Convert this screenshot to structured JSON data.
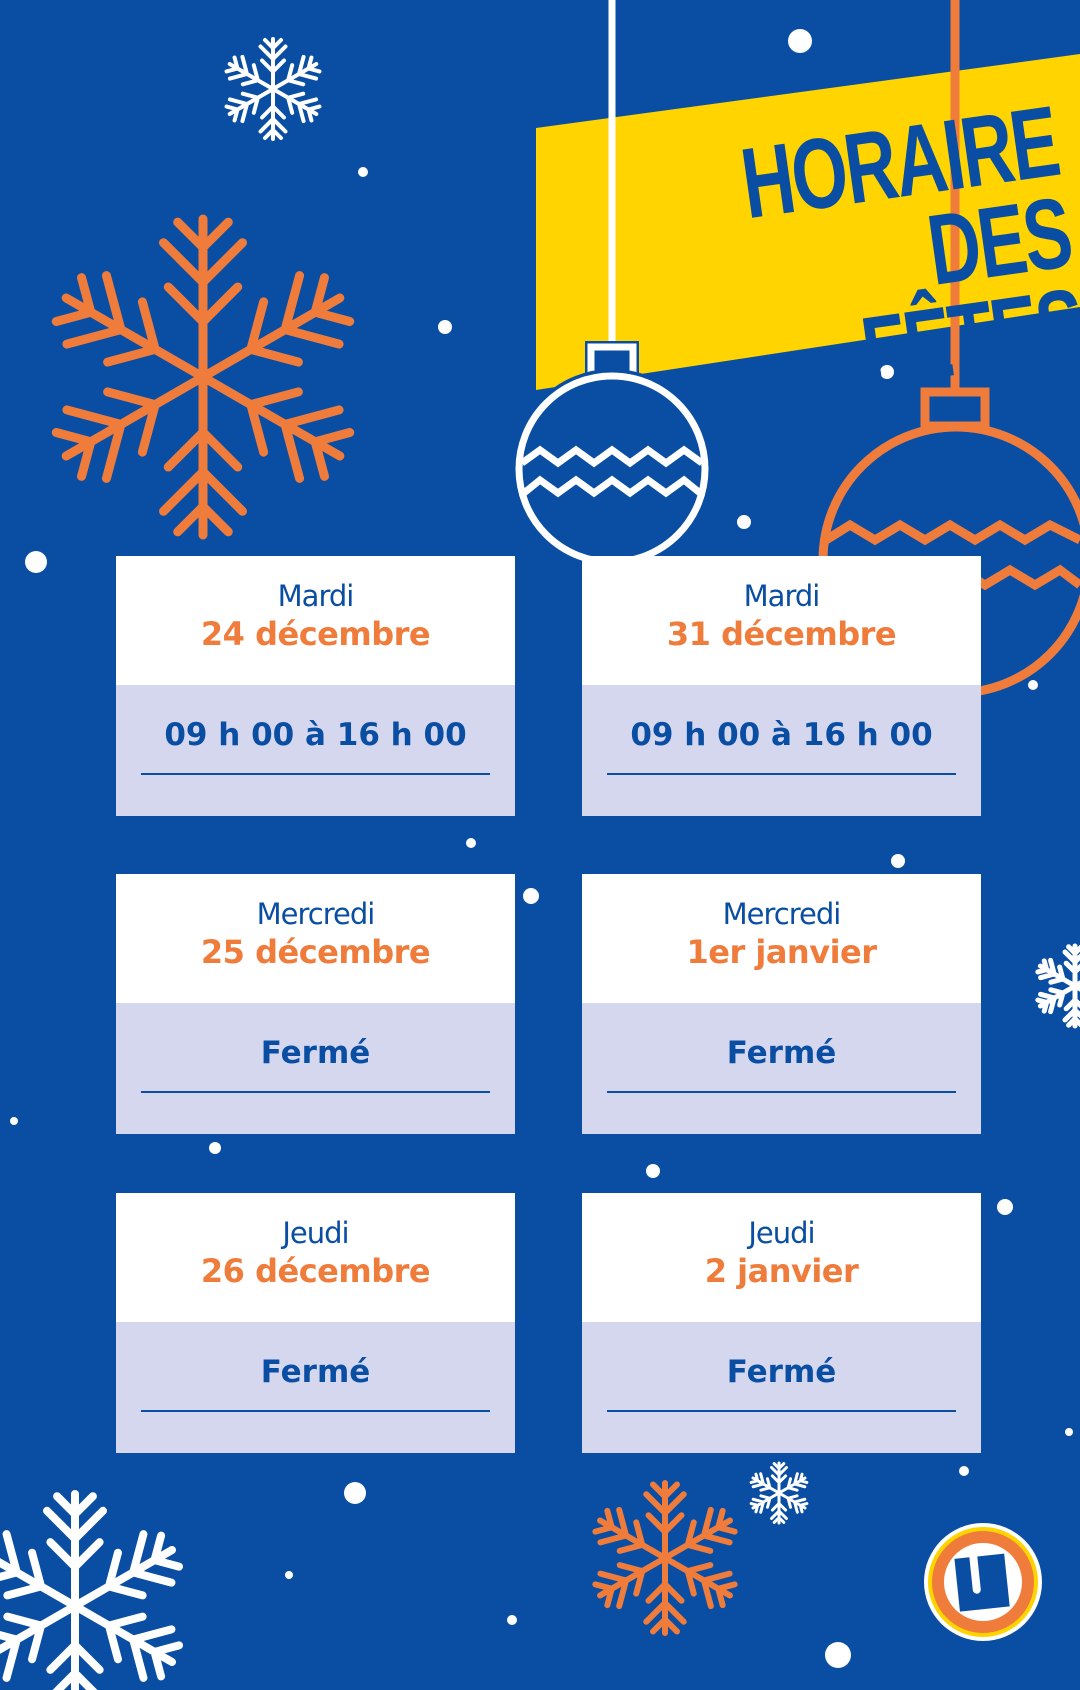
{
  "title": {
    "line1": "HORAIRE",
    "line2": "DES FÊTES"
  },
  "colors": {
    "background": "#0a4ea3",
    "accent": "#f07c3c",
    "banner": "#ffd400",
    "card_lower": "#d5d7ee",
    "text": "#0a4ea3"
  },
  "cards": [
    {
      "day": "Mardi",
      "date": "24 décembre",
      "hours": "09 h 00 à 16 h 00"
    },
    {
      "day": "Mardi",
      "date": "31 décembre",
      "hours": "09 h 00 à 16 h 00"
    },
    {
      "day": "Mercredi",
      "date": "25 décembre",
      "hours": "Fermé"
    },
    {
      "day": "Mercredi",
      "date": "1er janvier",
      "hours": "Fermé"
    },
    {
      "day": "Jeudi",
      "date": "26 décembre",
      "hours": "Fermé"
    },
    {
      "day": "Jeudi",
      "date": "2 janvier",
      "hours": "Fermé"
    }
  ],
  "logo": {
    "letter": "U",
    "icon": "uniprix-u-logo"
  }
}
